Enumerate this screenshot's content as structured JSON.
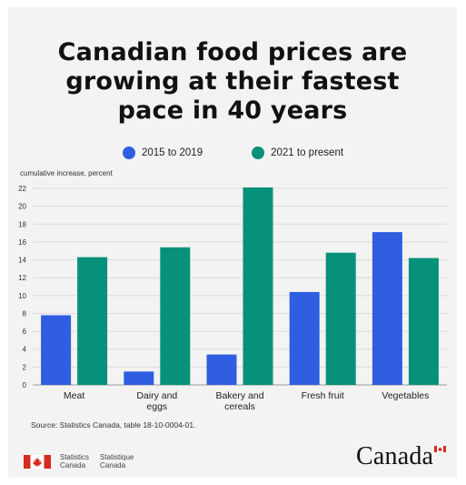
{
  "title_lines": [
    "Canadian food prices are",
    "growing at their fastest",
    "pace in 40 years"
  ],
  "legend": [
    {
      "label": "2015 to 2019",
      "color": "#2f5fe0"
    },
    {
      "label": "2021 to present",
      "color": "#07917a"
    }
  ],
  "y_unit_label": "cumulative increase, percent",
  "source": "Source: Statistics Canada, table 18-10-0004-01.",
  "agency": {
    "en_line1": "Statistics",
    "en_line2": "Canada",
    "fr_line1": "Statistique",
    "fr_line2": "Canada"
  },
  "wordmark": "Canada",
  "chart_data": {
    "type": "bar",
    "categories": [
      [
        "Meat"
      ],
      [
        "Dairy and",
        "eggs"
      ],
      [
        "Bakery and",
        "cereals"
      ],
      [
        "Fresh fruit"
      ],
      [
        "Vegetables"
      ]
    ],
    "series": [
      {
        "name": "2015 to 2019",
        "color": "#2f5fe0",
        "values": [
          7.8,
          1.5,
          3.4,
          10.4,
          17.1
        ]
      },
      {
        "name": "2021 to present",
        "color": "#07917a",
        "values": [
          14.3,
          15.4,
          22.1,
          14.8,
          14.2
        ]
      }
    ],
    "ylim": [
      0,
      22
    ],
    "yticks": [
      0,
      2,
      4,
      6,
      8,
      10,
      12,
      14,
      16,
      18,
      20,
      22
    ],
    "grid": true
  }
}
